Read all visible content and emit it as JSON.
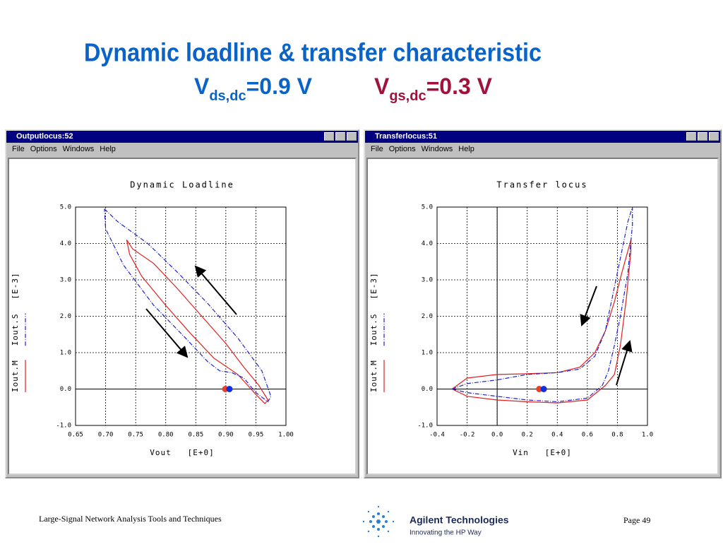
{
  "slide": {
    "title": "Dynamic loadline & transfer characteristic",
    "conditions": [
      {
        "symbol": "V",
        "subscript": "ds,dc",
        "value": "=0.9 V",
        "color": "#0a64c8"
      },
      {
        "symbol": "V",
        "subscript": "gs,dc",
        "value": "=0.3 V",
        "color": "#a0123c"
      }
    ]
  },
  "windows": [
    {
      "title": "Outputlocus:52",
      "menu": [
        "File",
        "Options",
        "Windows",
        "Help"
      ]
    },
    {
      "title": "Transferlocus:51",
      "menu": [
        "File",
        "Options",
        "Windows",
        "Help"
      ]
    }
  ],
  "chart_data": [
    {
      "type": "line",
      "title": "Dynamic Loadline",
      "xlabel": "Vout   [E+0]",
      "ylabel": "[E-3]",
      "xlim": [
        0.65,
        1.0
      ],
      "ylim": [
        -1.0,
        5.0
      ],
      "grid": true,
      "zero_lines": [
        "y"
      ],
      "xticks": [
        0.65,
        {
          "value": 0.7,
          "label": "0.70"
        },
        0.75,
        {
          "value": 0.8,
          "label": "0.80"
        },
        0.85,
        {
          "value": 0.9,
          "label": "0.90"
        },
        0.95,
        {
          "value": 1.0,
          "label": "1.00"
        }
      ],
      "yticks": [
        {
          "value": -1,
          "label": "-1.0"
        },
        {
          "value": 0,
          "label": "0.0"
        },
        {
          "value": 1,
          "label": "1.0"
        },
        {
          "value": 2,
          "label": "2.0"
        },
        {
          "value": 3,
          "label": "3.0"
        },
        {
          "value": 4,
          "label": "4.0"
        },
        {
          "value": 5,
          "label": "5.0"
        }
      ],
      "series": [
        {
          "name": "Iout.M",
          "color": "#e02020",
          "dashed": false,
          "x": [
            0.735,
            0.745,
            0.78,
            0.82,
            0.86,
            0.9,
            0.93,
            0.955,
            0.97,
            0.965,
            0.95,
            0.92,
            0.88,
            0.84,
            0.8,
            0.76,
            0.74,
            0.735
          ],
          "values": [
            4.1,
            3.85,
            3.45,
            2.75,
            2.0,
            1.25,
            0.6,
            0.1,
            -0.3,
            -0.4,
            -0.15,
            0.4,
            0.85,
            1.55,
            2.3,
            3.1,
            3.7,
            4.1
          ]
        },
        {
          "name": "Iout.S",
          "color": "#2020d0",
          "dashed": true,
          "x": [
            0.698,
            0.72,
            0.77,
            0.82,
            0.87,
            0.92,
            0.96,
            0.975,
            0.97,
            0.95,
            0.93,
            0.91,
            0.89,
            0.87,
            0.83,
            0.78,
            0.73,
            0.7,
            0.698
          ],
          "values": [
            4.95,
            4.6,
            4.0,
            3.2,
            2.35,
            1.4,
            0.5,
            -0.2,
            -0.35,
            -0.1,
            0.3,
            0.45,
            0.5,
            0.75,
            1.45,
            2.3,
            3.4,
            4.4,
            4.95
          ]
        }
      ],
      "points": [
        {
          "x": 0.899,
          "y": 0,
          "color": "#e8402a"
        },
        {
          "x": 0.906,
          "y": 0,
          "color": "#1030e0"
        }
      ]
    },
    {
      "type": "line",
      "title": "Transfer locus",
      "xlabel": "Vin   [E+0]",
      "ylabel": "[E-3]",
      "xlim": [
        -0.4,
        1.0
      ],
      "ylim": [
        -1.0,
        5.0
      ],
      "grid": true,
      "zero_lines": [
        "x",
        "y"
      ],
      "xticks": [
        -0.4,
        -0.2,
        {
          "value": 0,
          "label": "0.0"
        },
        0.2,
        0.4,
        0.6,
        0.8,
        {
          "value": 1,
          "label": "1.0"
        }
      ],
      "yticks": [
        {
          "value": -1,
          "label": "-1.0"
        },
        {
          "value": 0,
          "label": "0.0"
        },
        {
          "value": 1,
          "label": "1.0"
        },
        {
          "value": 2,
          "label": "2.0"
        },
        {
          "value": 3,
          "label": "3.0"
        },
        {
          "value": 4,
          "label": "4.0"
        },
        {
          "value": 5,
          "label": "5.0"
        }
      ],
      "series": [
        {
          "name": "Iout.M",
          "color": "#e02020",
          "dashed": false,
          "x": [
            -0.3,
            -0.2,
            0,
            0.2,
            0.4,
            0.55,
            0.65,
            0.72,
            0.78,
            0.83,
            0.87,
            0.89,
            0.89,
            0.86,
            0.82,
            0.78,
            0.72,
            0.6,
            0.4,
            0.2,
            0,
            -0.2,
            -0.3
          ],
          "values": [
            0,
            0.3,
            0.4,
            0.42,
            0.45,
            0.6,
            1.0,
            1.6,
            2.4,
            3.2,
            3.8,
            4.1,
            3.8,
            2.5,
            1.2,
            0.4,
            0.1,
            -0.3,
            -0.38,
            -0.35,
            -0.3,
            -0.2,
            0
          ]
        },
        {
          "name": "Iout.S",
          "color": "#2020d0",
          "dashed": true,
          "x": [
            -0.3,
            -0.2,
            0,
            0.2,
            0.4,
            0.55,
            0.65,
            0.72,
            0.78,
            0.83,
            0.87,
            0.9,
            0.9,
            0.87,
            0.82,
            0.78,
            0.74,
            0.7,
            0.6,
            0.4,
            0.2,
            0,
            -0.2,
            -0.3
          ],
          "values": [
            0,
            0.15,
            0.25,
            0.4,
            0.45,
            0.55,
            0.9,
            1.6,
            2.8,
            3.8,
            4.6,
            5.0,
            4.5,
            3.2,
            2.0,
            1.2,
            0.5,
            0.1,
            -0.25,
            -0.35,
            -0.3,
            -0.2,
            -0.1,
            0
          ]
        }
      ],
      "points": [
        {
          "x": 0.28,
          "y": 0,
          "color": "#e8402a"
        },
        {
          "x": 0.31,
          "y": 0,
          "color": "#1030e0"
        }
      ]
    }
  ],
  "footer": {
    "left": "Large-Signal Network Analysis Tools and Techniques",
    "company": "Agilent Technologies",
    "tagline": "Innovating the HP Way",
    "page": "Page 49"
  }
}
